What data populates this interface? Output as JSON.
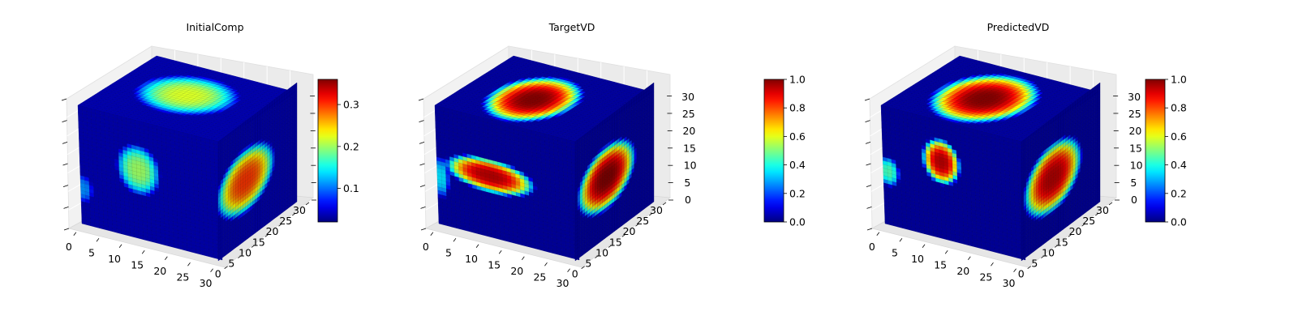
{
  "colormap": "jet",
  "chart_data": [
    {
      "type": "3d-voxel",
      "title": "InitialComp",
      "colorbar": {
        "range": [
          0.02,
          0.36
        ],
        "ticks": [
          0.1,
          0.2,
          0.3
        ],
        "tick_labels": [
          "0.1",
          "0.2",
          "0.3"
        ]
      },
      "axes": {
        "x_ticks": [
          "0",
          "5",
          "10",
          "15",
          "20",
          "25",
          "30"
        ],
        "y_ticks": [
          "0",
          "5",
          "10",
          "15",
          "20",
          "25",
          "30"
        ],
        "z_ticks": [],
        "range": [
          0,
          32
        ]
      },
      "blobs": {
        "top": [
          {
            "u": 0.47,
            "v": 0.55,
            "ru": 0.33,
            "rv": 0.33,
            "value": 0.22
          }
        ],
        "front": [
          {
            "u": 0.42,
            "v": 0.42,
            "ru": 0.16,
            "rv": 0.22,
            "value": 0.2
          },
          {
            "u": 0.02,
            "v": 0.7,
            "ru": 0.07,
            "rv": 0.12,
            "value": 0.11
          }
        ],
        "side": [
          {
            "u": 0.35,
            "v": 0.5,
            "ru": 0.38,
            "rv": 0.28,
            "value": 0.3
          }
        ]
      },
      "background": 0.035
    },
    {
      "type": "3d-voxel",
      "title": "TargetVD",
      "colorbar": {
        "range": [
          0,
          1
        ],
        "ticks": [
          0,
          0.2,
          0.4,
          0.6,
          0.8,
          1.0
        ],
        "tick_labels": [
          "0.0",
          "0.2",
          "0.4",
          "0.6",
          "0.8",
          "1.0"
        ]
      },
      "axes": {
        "x_ticks": [
          "0",
          "5",
          "10",
          "15",
          "20",
          "25",
          "30"
        ],
        "y_ticks": [
          "0",
          "5",
          "10",
          "15",
          "20",
          "25",
          "30"
        ],
        "z_ticks": [
          "0",
          "5",
          "10",
          "15",
          "20",
          "25",
          "30"
        ],
        "range": [
          0,
          32
        ]
      },
      "blobs": {
        "top": [
          {
            "u": 0.45,
            "v": 0.45,
            "ru": 0.28,
            "rv": 0.42,
            "value": 1.0
          }
        ],
        "front": [
          {
            "u": 0.38,
            "v": 0.48,
            "ru": 0.33,
            "rv": 0.15,
            "value": 0.95
          },
          {
            "u": 0.03,
            "v": 0.6,
            "ru": 0.06,
            "rv": 0.18,
            "value": 0.35
          }
        ],
        "side": [
          {
            "u": 0.4,
            "v": 0.5,
            "ru": 0.38,
            "rv": 0.28,
            "value": 1.0
          }
        ]
      },
      "background": 0.03
    },
    {
      "type": "3d-voxel",
      "title": "PredictedVD",
      "colorbar": {
        "range": [
          0,
          1
        ],
        "ticks": [
          0,
          0.2,
          0.4,
          0.6,
          0.8,
          1.0
        ],
        "tick_labels": [
          "0.0",
          "0.2",
          "0.4",
          "0.6",
          "0.8",
          "1.0"
        ]
      },
      "axes": {
        "x_ticks": [
          "0",
          "5",
          "10",
          "15",
          "20",
          "25",
          "30"
        ],
        "y_ticks": [
          "0",
          "5",
          "10",
          "15",
          "20",
          "25",
          "30"
        ],
        "z_ticks": [
          "0",
          "5",
          "10",
          "15",
          "20",
          "25",
          "30"
        ],
        "range": [
          0,
          32
        ]
      },
      "blobs": {
        "top": [
          {
            "u": 0.47,
            "v": 0.48,
            "ru": 0.32,
            "rv": 0.45,
            "value": 1.0
          }
        ],
        "front": [
          {
            "u": 0.42,
            "v": 0.35,
            "ru": 0.14,
            "rv": 0.2,
            "value": 0.95
          },
          {
            "u": 0.04,
            "v": 0.55,
            "ru": 0.08,
            "rv": 0.13,
            "value": 0.45
          }
        ],
        "side": [
          {
            "u": 0.4,
            "v": 0.5,
            "ru": 0.38,
            "rv": 0.3,
            "value": 0.95
          }
        ]
      },
      "background": 0.03
    }
  ]
}
